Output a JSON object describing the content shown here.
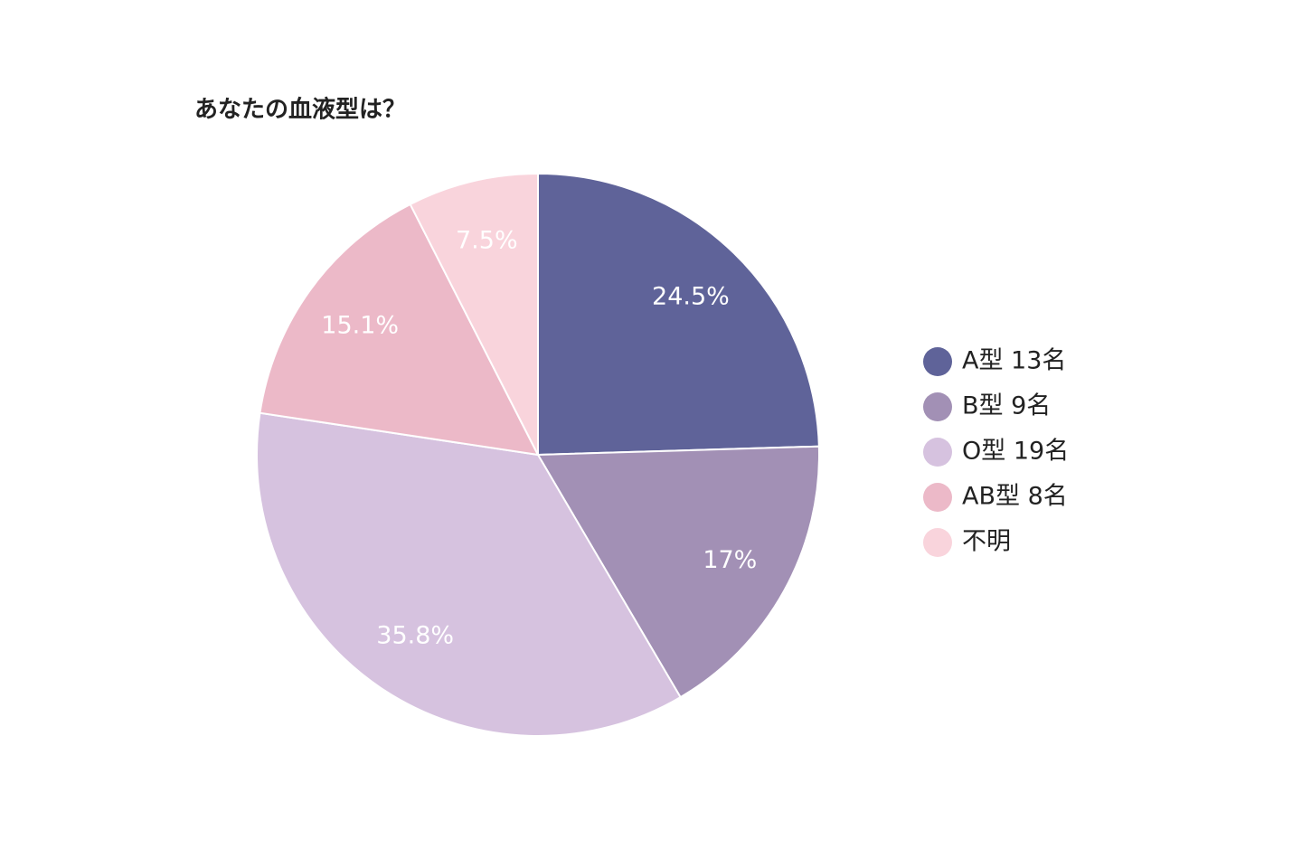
{
  "chart_data": {
    "type": "pie",
    "title": "あなたの血液型は？",
    "categories": [
      "A型 13名",
      "B型 9名",
      "O型 19名",
      "AB型 8名",
      "不明"
    ],
    "values": [
      24.5,
      17,
      35.8,
      15.1,
      7.5
    ],
    "value_labels": [
      "24.5%",
      "17%",
      "35.8%",
      "15.1%",
      "7.5%"
    ],
    "colors": [
      "#5f6399",
      "#a290b5",
      "#d6c2df",
      "#ecb9c8",
      "#f9d4dc"
    ],
    "legend": "right"
  }
}
